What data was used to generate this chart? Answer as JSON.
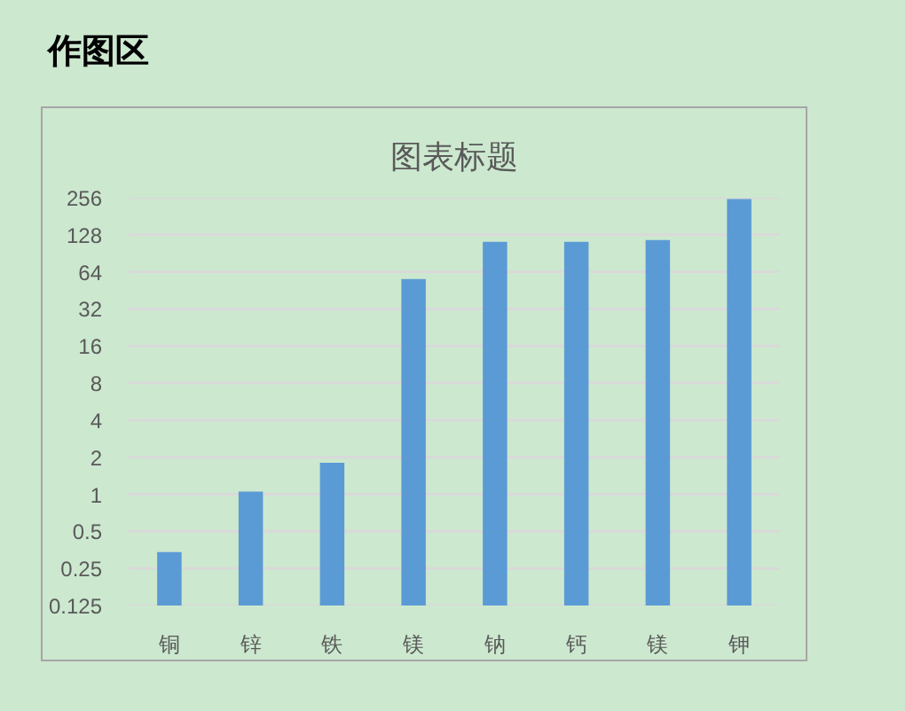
{
  "chart_data": {
    "type": "bar",
    "title": "图表标题",
    "annotations": [
      "作图区"
    ],
    "categories": [
      "铜",
      "锌",
      "铁",
      "镁",
      "钠",
      "钙",
      "镁",
      "钾"
    ],
    "values": [
      0.34,
      1.05,
      1.8,
      56,
      112,
      112,
      116,
      250
    ],
    "color": "#5b9bd5",
    "log": true,
    "ylim": [
      0.125,
      256
    ],
    "yticks": [
      0.125,
      0.25,
      0.5,
      1,
      2,
      4,
      8,
      16,
      32,
      64,
      128,
      256
    ],
    "grid": "y"
  }
}
